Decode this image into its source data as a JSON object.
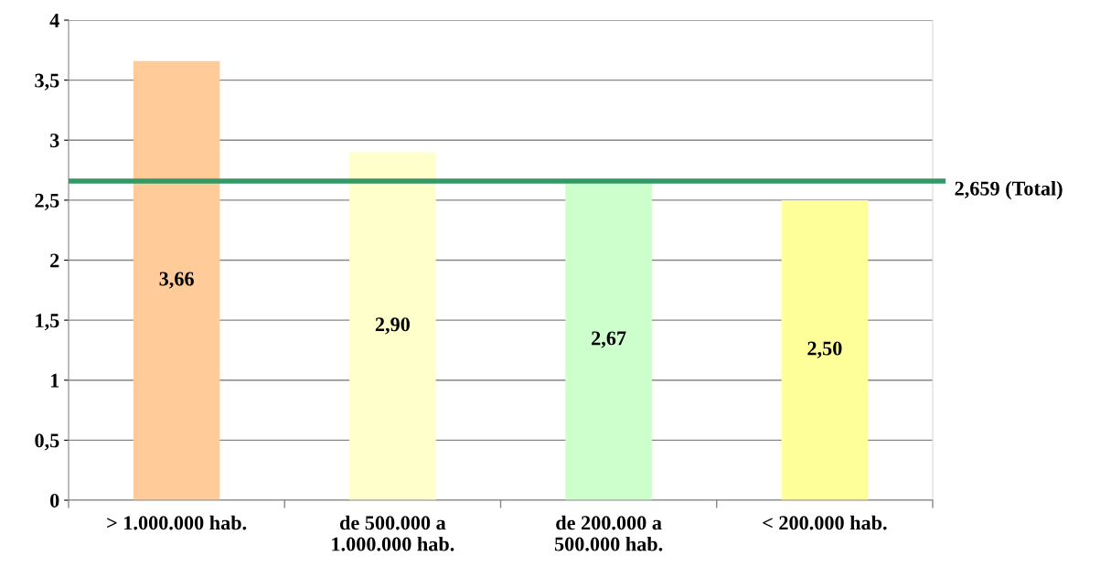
{
  "chart_data": {
    "type": "bar",
    "categories": [
      "> 1.000.000 hab.",
      "de 500.000 a\n1.000.000 hab.",
      "de 200.000 a\n500.000 hab.",
      "< 200.000 hab."
    ],
    "values": [
      3.66,
      2.9,
      2.67,
      2.5
    ],
    "colors": [
      "#ffcc99",
      "#ffffcc",
      "#ccffcc",
      "#ffff99"
    ],
    "value_labels": [
      "3,66",
      "2,90",
      "2,67",
      "2,50"
    ],
    "ylim": [
      0,
      4
    ],
    "yticks": [
      0,
      {
        "value": 0.5,
        "label": "0,5"
      },
      1,
      {
        "value": 1.5,
        "label": "1,5"
      },
      2,
      {
        "value": 2.5,
        "label": "2,5"
      },
      3,
      {
        "value": 3.5,
        "label": "3,5"
      },
      4
    ],
    "grid": "y",
    "ref_lines": [
      {
        "axis": "y",
        "value": 2.659,
        "label": "2,659 (Total)",
        "color": "#339966"
      }
    ]
  }
}
